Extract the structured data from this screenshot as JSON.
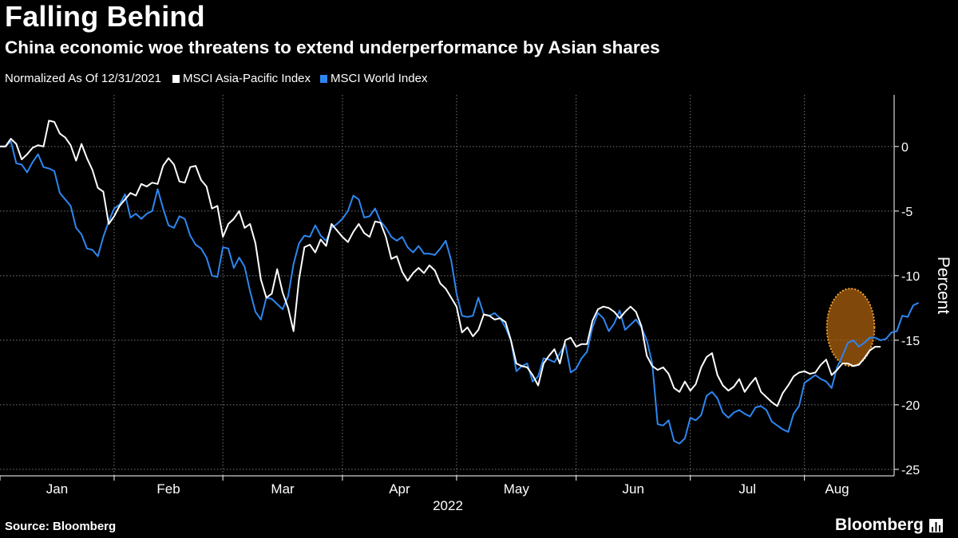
{
  "header": {
    "title": "Falling Behind",
    "subtitle": "China economic woe threatens to extend underperformance by Asian shares"
  },
  "legend": {
    "note": "Normalized As Of 12/31/2021",
    "items": [
      {
        "label": "MSCI Asia-Pacific Index",
        "color": "#ffffff"
      },
      {
        "label": "MSCI World Index",
        "color": "#2e86f0"
      }
    ]
  },
  "footer": {
    "source": "Source: Bloomberg",
    "brand": "Bloomberg"
  },
  "chart_data": {
    "type": "line",
    "ylabel": "Percent",
    "xlabel": "2022",
    "ylim": [
      -25.5,
      4
    ],
    "yticks": [
      0,
      -5,
      -10,
      -15,
      -20,
      -25
    ],
    "xticks": [
      "Jan",
      "Feb",
      "Mar",
      "Apr",
      "May",
      "Jun",
      "Jul",
      "Aug"
    ],
    "grid": true,
    "highlight": {
      "shape": "ellipse",
      "color": "#b8660f",
      "x_range": [
        153,
        160
      ],
      "y_range": [
        -17,
        -11
      ]
    },
    "series": [
      {
        "name": "MSCI Asia-Pacific Index",
        "color": "#ffffff",
        "values": [
          0,
          0,
          0.6,
          0.2,
          -1.0,
          -0.6,
          -0.1,
          0.1,
          0.0,
          2.0,
          1.9,
          1.0,
          0.7,
          0.1,
          -1.1,
          0.2,
          -0.9,
          -1.8,
          -3.2,
          -3.5,
          -6.0,
          -5.4,
          -4.6,
          -4.1,
          -3.6,
          -3.8,
          -2.9,
          -3.1,
          -2.8,
          -2.9,
          -1.5,
          -0.9,
          -1.4,
          -2.7,
          -2.8,
          -1.6,
          -1.5,
          -2.6,
          -3.1,
          -4.8,
          -4.6,
          -7.0,
          -6.0,
          -5.6,
          -5.0,
          -6.3,
          -6.0,
          -7.5,
          -10.3,
          -11.7,
          -11.4,
          -9.5,
          -11.3,
          -12.5,
          -14.3,
          -10.3,
          -7.8,
          -7.6,
          -8.2,
          -7.2,
          -7.7,
          -6.0,
          -6.5,
          -7.0,
          -7.4,
          -6.6,
          -6.0,
          -6.7,
          -7.0,
          -5.8,
          -5.9,
          -7.0,
          -8.7,
          -8.5,
          -9.7,
          -10.4,
          -9.8,
          -9.4,
          -9.8,
          -9.2,
          -9.6,
          -10.6,
          -11.0,
          -11.7,
          -12.4,
          -14.4,
          -14.0,
          -14.7,
          -14.2,
          -13.0,
          -13.1,
          -13.4,
          -13.3,
          -13.6,
          -15.0,
          -16.8,
          -17.0,
          -17.1,
          -17.7,
          -18.5,
          -16.8,
          -16.2,
          -15.7,
          -16.8,
          -15.0,
          -14.8,
          -15.5,
          -15.3,
          -15.3,
          -13.5,
          -12.6,
          -12.4,
          -12.5,
          -12.8,
          -13.3,
          -12.8,
          -12.4,
          -12.8,
          -13.9,
          -16.2,
          -17.0,
          -17.3,
          -17.1,
          -17.6,
          -18.7,
          -19.0,
          -18.2,
          -18.9,
          -18.4,
          -17.1,
          -16.3,
          -16.0,
          -17.7,
          -18.5,
          -18.9,
          -18.6,
          -18.0,
          -19.0,
          -18.4,
          -17.9,
          -19.0,
          -19.4,
          -19.8,
          -20.1,
          -19.1,
          -18.5,
          -17.8,
          -17.5,
          -17.4,
          -17.6,
          -17.5,
          -16.9,
          -16.5,
          -17.7,
          -17.3,
          -16.8,
          -16.8,
          -17.0,
          -16.9,
          -16.4,
          -15.8,
          -15.5,
          -15.5
        ]
      },
      {
        "name": "MSCI World Index",
        "color": "#2e86f0",
        "values": [
          0,
          0,
          0.4,
          -1.3,
          -1.4,
          -2.0,
          -1.2,
          -0.6,
          -1.6,
          -1.7,
          -1.9,
          -3.6,
          -4.1,
          -4.6,
          -6.3,
          -6.8,
          -7.9,
          -8.0,
          -8.5,
          -7.0,
          -5.8,
          -4.8,
          -4.5,
          -3.7,
          -5.5,
          -5.2,
          -5.6,
          -5.2,
          -5.0,
          -3.3,
          -4.8,
          -6.1,
          -6.3,
          -5.4,
          -5.6,
          -6.9,
          -7.6,
          -7.9,
          -8.6,
          -10.0,
          -10.1,
          -7.8,
          -7.9,
          -9.4,
          -8.6,
          -9.3,
          -11.2,
          -12.8,
          -13.4,
          -11.7,
          -11.8,
          -12.2,
          -12.6,
          -11.6,
          -9.1,
          -7.5,
          -6.9,
          -7.0,
          -6.1,
          -6.9,
          -7.3,
          -6.3,
          -6.0,
          -5.6,
          -5.0,
          -3.8,
          -4.1,
          -5.5,
          -5.4,
          -4.8,
          -5.8,
          -6.3,
          -7.0,
          -7.3,
          -7.0,
          -7.8,
          -8.2,
          -7.7,
          -8.3,
          -8.3,
          -8.4,
          -7.9,
          -7.3,
          -8.8,
          -11.4,
          -13.1,
          -13.2,
          -13.1,
          -11.7,
          -13.0,
          -13.1,
          -12.9,
          -13.3,
          -14.0,
          -15.0,
          -17.4,
          -17.0,
          -16.8,
          -18.2,
          -17.8,
          -16.4,
          -16.5,
          -16.7,
          -16.0,
          -15.3,
          -17.5,
          -17.2,
          -16.4,
          -15.9,
          -14.0,
          -12.9,
          -13.3,
          -14.3,
          -13.7,
          -12.7,
          -14.2,
          -13.8,
          -13.4,
          -14.0,
          -15.0,
          -16.8,
          -21.5,
          -21.6,
          -21.2,
          -22.8,
          -23.0,
          -22.6,
          -21.0,
          -21.2,
          -20.8,
          -19.3,
          -19.0,
          -19.5,
          -20.6,
          -21.0,
          -20.6,
          -20.4,
          -20.7,
          -20.9,
          -20.2,
          -20.1,
          -20.4,
          -21.3,
          -21.6,
          -21.9,
          -22.1,
          -20.7,
          -20.1,
          -18.3,
          -18.0,
          -17.7,
          -18.0,
          -18.2,
          -18.7,
          -17.1,
          -16.2,
          -15.2,
          -15.0,
          -15.5,
          -15.2,
          -14.8,
          -14.8,
          -15.0,
          -14.9,
          -14.4,
          -14.3,
          -13.1,
          -13.2,
          -12.3,
          -12.1
        ]
      }
    ]
  }
}
